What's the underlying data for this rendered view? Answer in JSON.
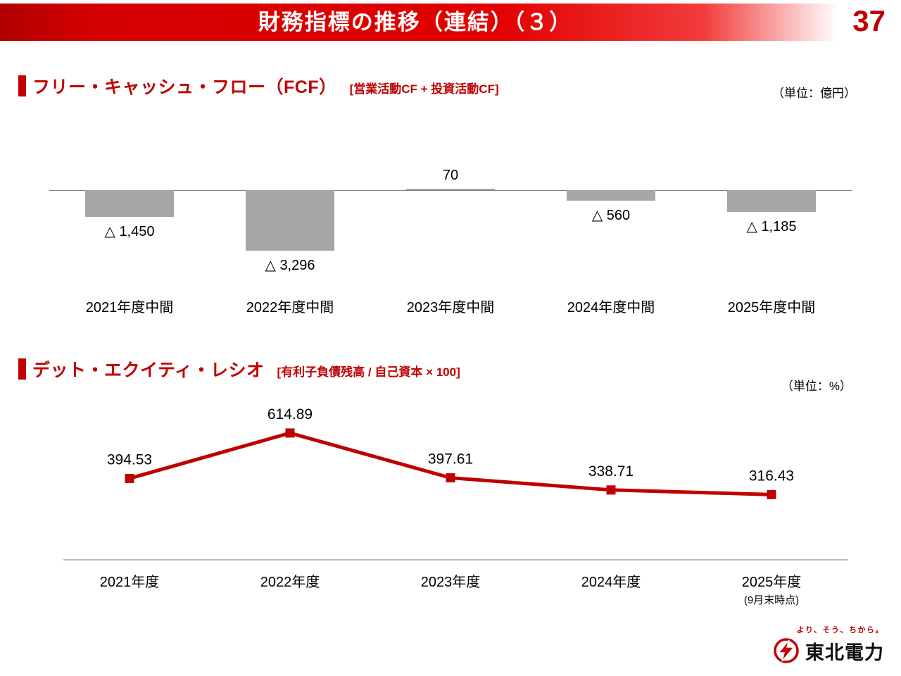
{
  "page": {
    "title": "財務指標の推移（連結）（３）",
    "page_number": "37"
  },
  "fcf_section": {
    "heading": "フリー・キャッシュ・フロー（FCF）",
    "formula": "[営業活動CF + 投資活動CF]",
    "unit": "（単位：億円）"
  },
  "der_section": {
    "heading": "デット・エクイティ・レシオ",
    "formula": "[有利子負債残高 / 自己資本 × 100]",
    "unit": "（単位：%）"
  },
  "footer": {
    "tagline": "より、そう、ちから。",
    "company": "東北電力"
  },
  "colors": {
    "accent_red": "#c00000",
    "bar_gray": "#a6a6a6",
    "line_red": "#bf0000",
    "axis_gray": "#a6a6a6"
  },
  "chart_data": [
    {
      "name": "free_cash_flow",
      "type": "bar",
      "title": "フリー・キャッシュ・フロー（FCF）",
      "subtitle": "[営業活動CF + 投資活動CF]",
      "unit": "億円",
      "categories": [
        "2021年度中間",
        "2022年度中間",
        "2023年度中間",
        "2024年度中間",
        "2025年度中間"
      ],
      "values": [
        -1450,
        -3296,
        70,
        -560,
        -1185
      ],
      "value_labels": [
        "△ 1,450",
        "△ 3,296",
        "70",
        "△ 560",
        "△ 1,185"
      ],
      "bar_color": "#a6a6a6",
      "ylim": [
        -3500,
        500
      ],
      "grid": false,
      "legend": false
    },
    {
      "name": "debt_equity_ratio",
      "type": "line",
      "title": "デット・エクイティ・レシオ",
      "subtitle": "[有利子負債残高 / 自己資本 × 100]",
      "unit": "%",
      "categories": [
        "2021年度",
        "2022年度",
        "2023年度",
        "2024年度",
        "2025年度"
      ],
      "category_sublabels": [
        "",
        "",
        "",
        "",
        "(9月末時点)"
      ],
      "values": [
        394.53,
        614.89,
        397.61,
        338.71,
        316.43
      ],
      "value_labels": [
        "394.53",
        "614.89",
        "397.61",
        "338.71",
        "316.43"
      ],
      "line_color": "#bf0000",
      "marker": "square",
      "ylim": [
        0,
        700
      ],
      "grid": false,
      "legend": false
    }
  ]
}
